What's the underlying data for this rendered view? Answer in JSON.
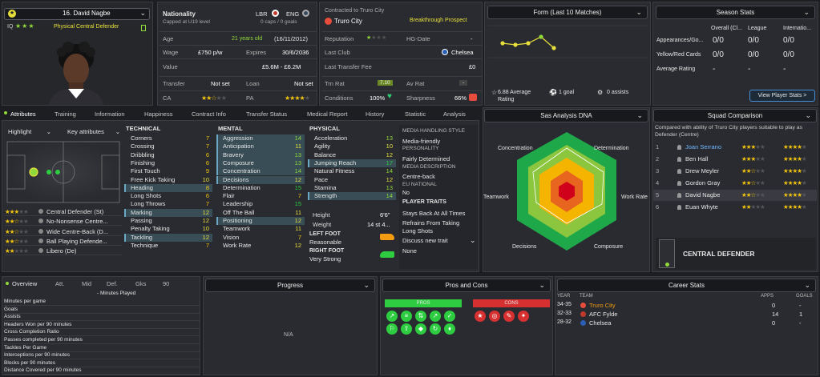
{
  "player": {
    "selector": "16. David Nagbe",
    "role": "Physical Central Defender",
    "iq_label": "IQ"
  },
  "info": {
    "nationality_label": "Nationality",
    "capped": "Capped at U19 level",
    "nat1": "LBR",
    "nat2": "ENG",
    "caps": "0 caps / 0 goals",
    "age_label": "Age",
    "age_value": "21 years old",
    "dob": "(16/11/2012)",
    "wage_label": "Wage",
    "wage_value": "£750 p/w",
    "expires_label": "Expires",
    "expires_value": "30/6/2036",
    "value_label": "Value",
    "value_value": "£5.6M - £6.2M",
    "transfer_label": "Transfer",
    "transfer_value": "Not set",
    "loan_label": "Loan",
    "loan_value": "Not set",
    "ca_label": "CA",
    "pa_label": "PA",
    "ca_stars": 2.5,
    "pa_stars": 4
  },
  "contract": {
    "title": "Contracted to Truro City",
    "club": "Truro City",
    "status": "Breakthrough Prospect",
    "reputation_label": "Reputation",
    "hg_label": "HG-Date",
    "hg_value": "-",
    "last_club_label": "Last Club",
    "last_club_value": "Chelsea",
    "last_fee_label": "Last Transfer Fee",
    "last_fee_value": "£0",
    "trn_rat_label": "Trn Rat",
    "trn_rat_value": "7.10",
    "av_rat_label": "Av Rat",
    "av_rat_value": "-",
    "conditions_label": "Conditions",
    "conditions_value": "100%",
    "sharpness_label": "Sharpness",
    "sharpness_value": "66%"
  },
  "form": {
    "header": "Form (Last 10 Matches)",
    "avg_rating": "6.88 Average Rating",
    "goals": "1 goal",
    "assists": "0 assists",
    "points": [
      6.9,
      6.8,
      6.9,
      7.3,
      6.6
    ]
  },
  "season": {
    "header": "Season Stats",
    "col1": "Overall (Cl...",
    "col2": "League",
    "col3": "Internatio...",
    "rows": [
      {
        "label": "Appearances/Go...",
        "v1": "0/0",
        "v2": "0/0",
        "v3": "0/0"
      },
      {
        "label": "Yellow/Red Cards",
        "v1": "0/0",
        "v2": "0/0",
        "v3": "0/0"
      },
      {
        "label": "Average Rating",
        "v1": "-",
        "v2": "-",
        "v3": "-"
      }
    ],
    "button": "View Player Stats >"
  },
  "tabs": [
    "Attributes",
    "Training",
    "Information",
    "Happiness",
    "Contract Info",
    "Transfer Status",
    "Medical Report",
    "History",
    "Statistic",
    "Analysis"
  ],
  "attr_controls": {
    "highlight": "Highlight",
    "key_attributes": "Key attributes"
  },
  "positions": [
    {
      "stars": 3,
      "name": "Central Defender (St)"
    },
    {
      "stars": 2.5,
      "name": "No-Nonsense Centre..."
    },
    {
      "stars": 2.5,
      "name": "Wide Centre-Back (D..."
    },
    {
      "stars": 2.5,
      "name": "Ball Playing Defende..."
    },
    {
      "stars": 2,
      "name": "Libero (De)"
    }
  ],
  "technical": {
    "title": "TECHNICAL",
    "items": [
      {
        "n": "Corners",
        "v": "7"
      },
      {
        "n": "Crossing",
        "v": "7"
      },
      {
        "n": "Dribbling",
        "v": "6"
      },
      {
        "n": "Finishing",
        "v": "6"
      },
      {
        "n": "First Touch",
        "v": "9"
      },
      {
        "n": "Free Kick Taking",
        "v": "10"
      },
      {
        "n": "Heading",
        "v": "8"
      },
      {
        "n": "Long Shots",
        "v": "6"
      },
      {
        "n": "Long Throws",
        "v": "7"
      },
      {
        "n": "Marking",
        "v": "12"
      },
      {
        "n": "Passing",
        "v": "12"
      },
      {
        "n": "Penalty Taking",
        "v": "10"
      },
      {
        "n": "Tackling",
        "v": "12"
      },
      {
        "n": "Technique",
        "v": "7"
      }
    ]
  },
  "mental": {
    "title": "MENTAL",
    "items": [
      {
        "n": "Aggression",
        "v": "14"
      },
      {
        "n": "Anticipation",
        "v": "11"
      },
      {
        "n": "Bravery",
        "v": "13"
      },
      {
        "n": "Composure",
        "v": "13"
      },
      {
        "n": "Concentration",
        "v": "14"
      },
      {
        "n": "Decisions",
        "v": "12"
      },
      {
        "n": "Determination",
        "v": "15"
      },
      {
        "n": "Flair",
        "v": "7"
      },
      {
        "n": "Leadership",
        "v": "15"
      },
      {
        "n": "Off The Ball",
        "v": "11"
      },
      {
        "n": "Positioning",
        "v": "12"
      },
      {
        "n": "Teamwork",
        "v": "11"
      },
      {
        "n": "Vision",
        "v": "7"
      },
      {
        "n": "Work Rate",
        "v": "12"
      }
    ]
  },
  "physical": {
    "title": "PHYSICAL",
    "items": [
      {
        "n": "Acceleration",
        "v": "13"
      },
      {
        "n": "Agility",
        "v": "10"
      },
      {
        "n": "Balance",
        "v": "12"
      },
      {
        "n": "Jumping Reach",
        "v": "17"
      },
      {
        "n": "Natural Fitness",
        "v": "14"
      },
      {
        "n": "Pace",
        "v": "12"
      },
      {
        "n": "Stamina",
        "v": "13"
      },
      {
        "n": "Strength",
        "v": "14"
      }
    ],
    "height_label": "Height",
    "height_value": "6'6\"",
    "weight_label": "Weight",
    "weight_value": "14 st 4...",
    "left_foot_label": "LEFT FOOT",
    "left_foot_value": "Reasonable",
    "right_foot_label": "RIGHT FOOT",
    "right_foot_value": "Very Strong"
  },
  "media": {
    "title": "MEDIA HANDLING STYLE",
    "style": "Media-friendly",
    "personality_label": "PERSONALITY",
    "personality": "Fairly Determined",
    "desc_label": "MEDIA DESCRIPTION",
    "desc": "Centre-back",
    "eu_label": "EU NATIONAL",
    "eu": "No",
    "traits_label": "PLAYER TRAITS",
    "traits": [
      "Stays Back At All Times",
      "Refrains From Taking Long Shots"
    ],
    "discuss": "Discuss new trait",
    "none": "None"
  },
  "dna": {
    "header": "Sas Analysis DNA",
    "labels": [
      "Concentration",
      "Determination",
      "Work Rate",
      "Composure",
      "Decisions",
      "Teamwork"
    ]
  },
  "squad": {
    "header": "Squad Comparison",
    "desc": "Compared with ability of Truro City players suitable to play as Defender (Centre)",
    "rows": [
      {
        "rank": "1",
        "name": "Joan Serrano",
        "ca": 3,
        "pa": 4
      },
      {
        "rank": "2",
        "name": "Ben Hall",
        "ca": 3,
        "pa": 4
      },
      {
        "rank": "3",
        "name": "Drew Meyler",
        "ca": 2.5,
        "pa": 4
      },
      {
        "rank": "4",
        "name": "Gordon Gray",
        "ca": 2.5,
        "pa": 4
      },
      {
        "rank": "5",
        "name": "David Nagbe",
        "ca": 2.5,
        "pa": 4
      },
      {
        "rank": "6",
        "name": "Euan Whyte",
        "ca": 2,
        "pa": 4
      }
    ],
    "position": "CENTRAL DEFENDER"
  },
  "overview": {
    "tabs": [
      "Overview",
      "Att.",
      "Mid",
      "Def.",
      "Gks",
      "90"
    ],
    "minutes_played": "- Minutes Played",
    "stats": [
      "Minutes per game",
      "Goals",
      "Assists",
      "Headers Won per 90 minutes",
      "Cross Completion Ratio",
      "Passes completed per 90 minutes",
      "Tackles Per Game",
      "Interceptions per 90 minutes",
      "Blocks per 90 minutes",
      "Distance Covered per 90 minutes"
    ]
  },
  "progress": {
    "header": "Progress",
    "na": "N/A"
  },
  "proscons": {
    "header": "Pros and Cons",
    "pros": "PROS",
    "cons": "CONS"
  },
  "career": {
    "header": "Career Stats",
    "col_year": "YEAR",
    "col_team": "TEAM",
    "col_apps": "APPS",
    "col_goals": "GOALS",
    "rows": [
      {
        "year": "34-35",
        "team": "Truro City",
        "apps": "0",
        "goals": "-"
      },
      {
        "year": "32-33",
        "team": "AFC Fylde",
        "apps": "14",
        "goals": "1"
      },
      {
        "year": "28-32",
        "team": "Chelsea",
        "apps": "0",
        "goals": "-"
      }
    ]
  },
  "colors": {
    "accent": "#8fd93a",
    "yellow": "#e7e03c",
    "pros": "#2ecc40",
    "cons": "#d63031"
  }
}
